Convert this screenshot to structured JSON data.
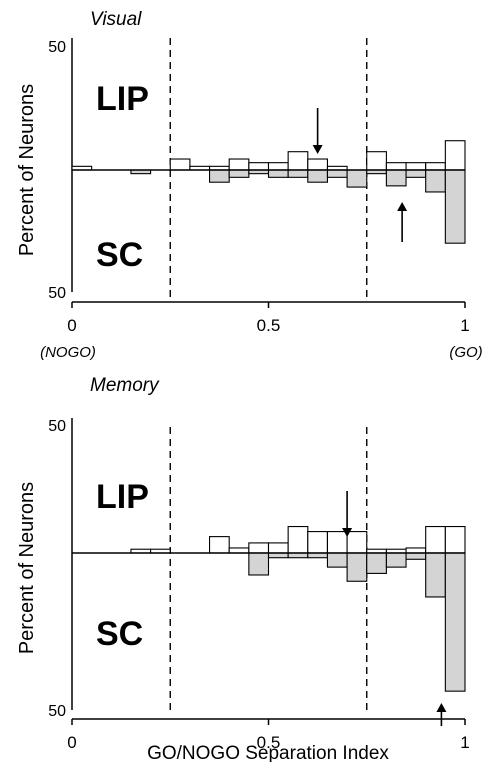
{
  "chart_data": [
    {
      "type": "bar",
      "title": "Visual",
      "ylabel": "Percent of Neurons",
      "ylim_top": [
        0,
        50
      ],
      "ylim_bottom": [
        0,
        50
      ],
      "ytick_labels": [
        "50",
        "50"
      ],
      "xlim": [
        0,
        1
      ],
      "xtick_labels": [
        "0",
        "0.5",
        "1"
      ],
      "x_notes": [
        "(NOGO)",
        "(GO)"
      ],
      "xlabel": "",
      "bin_width": 0.05,
      "dashed_lines_x": [
        0.25,
        0.75
      ],
      "series": [
        {
          "name": "LIP",
          "direction": "up",
          "fill": "#ffffff",
          "x": [
            0.0,
            0.25,
            0.3,
            0.35,
            0.4,
            0.45,
            0.5,
            0.55,
            0.6,
            0.65,
            0.7,
            0.75,
            0.8,
            0.85,
            0.9,
            0.95
          ],
          "values": [
            1.5,
            4.5,
            1.5,
            1.5,
            4.5,
            3.0,
            3.0,
            7.5,
            4.5,
            1.5,
            0,
            7.5,
            3.0,
            3.0,
            3.0,
            12.0
          ],
          "arrow_x": 0.625
        },
        {
          "name": "SC",
          "direction": "down",
          "fill": "#d4d4d4",
          "x": [
            0.15,
            0.35,
            0.4,
            0.45,
            0.5,
            0.55,
            0.6,
            0.65,
            0.7,
            0.75,
            0.8,
            0.85,
            0.9,
            0.95
          ],
          "values": [
            1.5,
            5.0,
            3.0,
            1.5,
            3.0,
            3.0,
            5.0,
            3.0,
            7.0,
            1.5,
            6.5,
            3.0,
            9.0,
            30.0
          ],
          "arrow_x": 0.84
        }
      ]
    },
    {
      "type": "bar",
      "title": "Memory",
      "ylabel": "Percent of Neurons",
      "ylim_top": [
        0,
        50
      ],
      "ylim_bottom": [
        0,
        50
      ],
      "ytick_labels": [
        "50",
        "50"
      ],
      "xlim": [
        0,
        1
      ],
      "xtick_labels": [
        "0",
        "0.5",
        "1"
      ],
      "x_notes": [],
      "xlabel": "GO/NOGO Separation Index",
      "bin_width": 0.05,
      "dashed_lines_x": [
        0.25,
        0.75
      ],
      "series": [
        {
          "name": "LIP",
          "direction": "up",
          "fill": "#ffffff",
          "x": [
            0.15,
            0.2,
            0.35,
            0.4,
            0.45,
            0.5,
            0.55,
            0.6,
            0.65,
            0.7,
            0.75,
            0.8,
            0.85,
            0.9,
            0.95
          ],
          "values": [
            1.5,
            1.5,
            6.5,
            2.0,
            4.0,
            4.0,
            10.5,
            8.5,
            8.5,
            8.5,
            1.5,
            1.5,
            2.0,
            10.5,
            10.5
          ],
          "arrow_x": 0.7
        },
        {
          "name": "SC",
          "direction": "down",
          "fill": "#d4d4d4",
          "x": [
            0.45,
            0.5,
            0.55,
            0.6,
            0.65,
            0.7,
            0.75,
            0.8,
            0.85,
            0.9,
            0.95
          ],
          "values": [
            7.0,
            1.5,
            1.5,
            1.5,
            4.5,
            9.0,
            6.5,
            4.5,
            2.0,
            14.0,
            44.0
          ],
          "arrow_x": 0.94
        }
      ]
    }
  ]
}
